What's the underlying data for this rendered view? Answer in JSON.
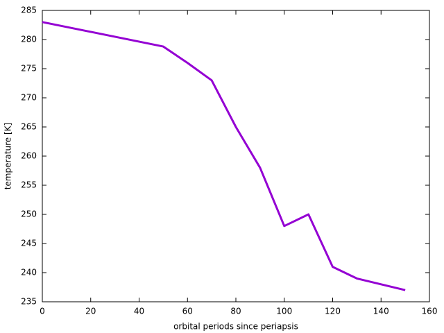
{
  "chart_data": {
    "type": "line",
    "x_label": "orbital periods since periapsis",
    "y_label": "temperature [K]",
    "x": [
      0,
      50,
      60,
      70,
      80,
      90,
      100,
      110,
      120,
      130,
      150
    ],
    "series": [
      {
        "color": "#9400d3",
        "values": [
          283,
          278.8,
          276,
          273,
          265,
          258,
          248,
          250,
          241,
          239,
          237
        ]
      }
    ],
    "xlim": [
      0,
      160
    ],
    "xticks": [
      0,
      20,
      40,
      60,
      80,
      100,
      120,
      140,
      160
    ],
    "ylim": [
      235,
      285
    ],
    "yticks": [
      235,
      240,
      245,
      250,
      255,
      260,
      265,
      270,
      275,
      280,
      285
    ],
    "grid": false
  }
}
